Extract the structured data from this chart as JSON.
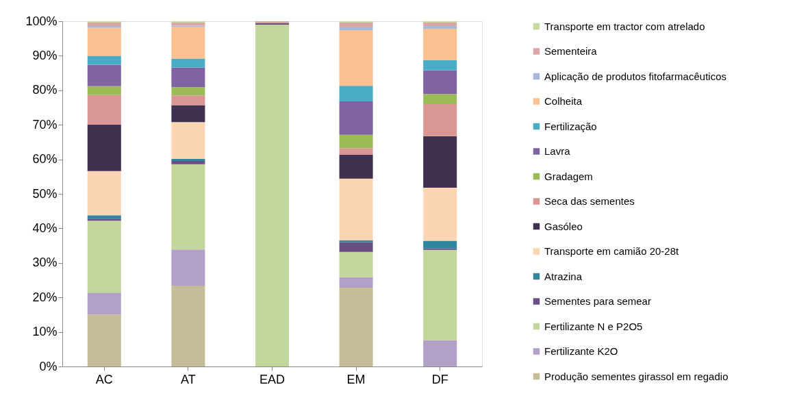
{
  "chart_data": {
    "type": "bar",
    "stacked": true,
    "categories": [
      "AC",
      "AT",
      "EAD",
      "EM",
      "DF"
    ],
    "series": [
      {
        "name": "Produção sementes girassol em regadio",
        "color": "#c4bd97",
        "values": [
          15.0,
          23.4,
          0,
          22.8,
          0
        ]
      },
      {
        "name": "Fertilizante K2O",
        "color": "#b2a1c7",
        "values": [
          6.4,
          10.5,
          0,
          3.1,
          7.6
        ]
      },
      {
        "name": "Fertilizante N e P2O5",
        "color": "#c3d69b",
        "values": [
          20.8,
          24.7,
          99.0,
          7.3,
          26.2
        ]
      },
      {
        "name": "Sementes para semear",
        "color": "#6a4f85",
        "values": [
          0.6,
          0.9,
          0.5,
          2.8,
          0.4
        ]
      },
      {
        "name": "Atrazina",
        "color": "#31859c",
        "values": [
          1.0,
          0.6,
          0,
          0.5,
          2.2
        ]
      },
      {
        "name": "Transporte  em camião 20-28t",
        "color": "#fcd5b5",
        "values": [
          12.8,
          10.7,
          0,
          17.9,
          15.4
        ]
      },
      {
        "name": "Gasóleo",
        "color": "#403151",
        "values": [
          13.5,
          4.9,
          0,
          6.9,
          14.9
        ]
      },
      {
        "name": "Seca das sementes",
        "color": "#d99694",
        "values": [
          8.5,
          2.8,
          0,
          1.9,
          9.3
        ]
      },
      {
        "name": "Gradagem",
        "color": "#9bbb59",
        "values": [
          2.6,
          2.4,
          0,
          3.9,
          2.9
        ]
      },
      {
        "name": "Lavra",
        "color": "#8064a2",
        "values": [
          6.2,
          5.7,
          0,
          9.7,
          6.9
        ]
      },
      {
        "name": "Fertilização",
        "color": "#4bacc6",
        "values": [
          2.6,
          2.6,
          0,
          4.5,
          2.9
        ]
      },
      {
        "name": "Colheita",
        "color": "#fac090",
        "values": [
          8.1,
          9.1,
          0,
          16.1,
          9.1
        ]
      },
      {
        "name": "Aplicação de produtos fitofarmacêuticos",
        "color": "#a6b9dc",
        "values": [
          0.5,
          0.4,
          0,
          0.8,
          0.8
        ]
      },
      {
        "name": "Sementeira",
        "color": "#dba7a6",
        "values": [
          1.0,
          0.9,
          0.5,
          1.4,
          1.0
        ]
      },
      {
        "name": "Transporte em  tractor com atrelado",
        "color": "#c6d9a0",
        "values": [
          0.4,
          0.4,
          0,
          0.4,
          0.4
        ]
      }
    ],
    "ylim": [
      0,
      100
    ],
    "yticks": [
      {
        "value": 0,
        "label": "0%"
      },
      {
        "value": 10,
        "label": "10%"
      },
      {
        "value": 20,
        "label": "20%"
      },
      {
        "value": 30,
        "label": "30%"
      },
      {
        "value": 40,
        "label": "40%"
      },
      {
        "value": 50,
        "label": "50%"
      },
      {
        "value": 60,
        "label": "60%"
      },
      {
        "value": 70,
        "label": "70%"
      },
      {
        "value": 80,
        "label": "80%"
      },
      {
        "value": 90,
        "label": "90%"
      },
      {
        "value": 100,
        "label": "100%"
      }
    ],
    "grid": false,
    "legend": "right"
  }
}
